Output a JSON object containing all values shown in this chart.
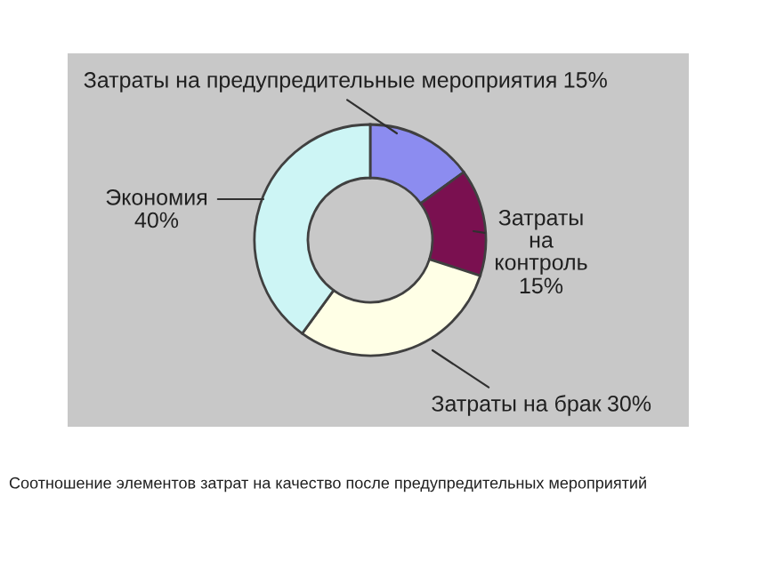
{
  "chart_data": {
    "type": "donut",
    "categories": [
      "Затраты на предупредительные мероприятия",
      "Затраты на контроль",
      "Затраты на брак",
      "Экономия"
    ],
    "values": [
      15,
      15,
      30,
      40
    ],
    "value_labels": [
      "15%",
      "15%",
      "30%",
      "40%"
    ],
    "colors": [
      "#8c8cf0",
      "#7a1050",
      "#ffffe6",
      "#cdf5f5"
    ],
    "annotations": [
      "Соотношение элементов затрат на качество после предупредительных мероприятий"
    ]
  }
}
